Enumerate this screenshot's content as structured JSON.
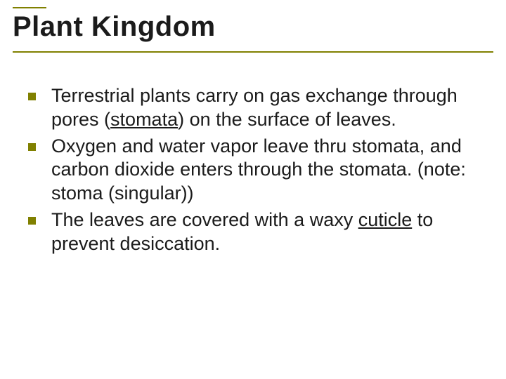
{
  "slide": {
    "title": "Plant Kingdom",
    "title_color": "#1b1b1b",
    "rule_color": "#808000",
    "title_fontsize": 40,
    "body_fontsize": 27,
    "bullet_color": "#808000",
    "bullets": [
      {
        "pre1": "Terrestrial plants carry on gas exchange through pores (",
        "u1": "stomata",
        "post1": ") on the surface of leaves."
      },
      {
        "pre1": "Oxygen and water vapor leave thru stomata, and carbon dioxide enters through the stomata. (note: stoma (singular))"
      },
      {
        "pre1": "The leaves are covered with a waxy ",
        "u1": "cuticle",
        "post1": " to prevent desiccation."
      }
    ]
  }
}
